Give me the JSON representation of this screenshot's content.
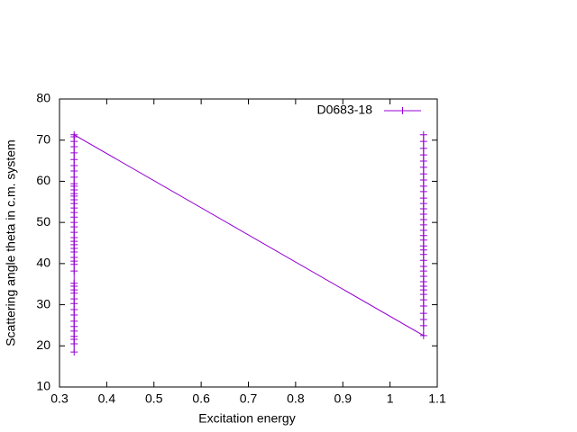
{
  "chart_data": {
    "type": "line",
    "xlabel": "Excitation energy",
    "ylabel": "Scattering angle theta in c.m. system",
    "xlim": [
      0.3,
      1.1
    ],
    "xticks": [
      0.3,
      0.4,
      0.5,
      0.6,
      0.7,
      0.8,
      0.9,
      1,
      1.1
    ],
    "ylim": [
      10,
      80
    ],
    "yticks": [
      10,
      20,
      30,
      40,
      50,
      60,
      70,
      80
    ],
    "legend": "upper right",
    "x": [
      0.331,
      0.331,
      0.331,
      0.331,
      0.331,
      0.331,
      0.331,
      0.331,
      0.331,
      0.331,
      0.331,
      0.331,
      0.331,
      0.331,
      0.331,
      0.331,
      0.331,
      0.331,
      0.331,
      0.331,
      0.331,
      0.331,
      0.331,
      0.331,
      0.331,
      0.331,
      0.331,
      0.331,
      0.331,
      0.331,
      0.331,
      0.331,
      0.331,
      0.331,
      0.331,
      0.331,
      0.331,
      0.331,
      0.331,
      0.331,
      0.331,
      0.331,
      0.331,
      0.331,
      0.331,
      0.331,
      1.071,
      1.071,
      1.071,
      1.071,
      1.071,
      1.071,
      1.071,
      1.071,
      1.071,
      1.071,
      1.071,
      1.071,
      1.071,
      1.071,
      1.071,
      1.071,
      1.071,
      1.071,
      1.071,
      1.071,
      1.071,
      1.071,
      1.071,
      1.071,
      1.071,
      1.071,
      1.071,
      1.071,
      1.071,
      1.071,
      1.071,
      1.071,
      1.071,
      1.071,
      1.071,
      1.071
    ],
    "series": [
      {
        "name": "D0683-18",
        "color": "#9400d3",
        "values": [
          18.5,
          20.5,
          21.6,
          22.3,
          23.6,
          24.7,
          26.0,
          27.5,
          28.8,
          30.3,
          31.4,
          32.8,
          33.6,
          34.5,
          35.2,
          38.2,
          39.8,
          40.6,
          41.5,
          42.8,
          43.7,
          44.6,
          45.4,
          46.3,
          47.6,
          48.9,
          50.0,
          51.3,
          52.4,
          53.5,
          54.6,
          55.5,
          56.4,
          57.0,
          57.9,
          58.8,
          59.4,
          61.0,
          62.5,
          63.8,
          65.3,
          66.9,
          68.4,
          69.7,
          70.8,
          71.3,
          22.5,
          24.9,
          26.4,
          27.9,
          29.7,
          31.2,
          32.5,
          33.6,
          34.5,
          35.6,
          36.9,
          38.2,
          39.3,
          40.8,
          42.2,
          43.3,
          44.3,
          45.7,
          46.8,
          48.1,
          49.4,
          50.7,
          52.0,
          53.3,
          54.6,
          55.9,
          57.5,
          58.8,
          60.3,
          61.8,
          63.4,
          64.9,
          66.4,
          68.0,
          69.7,
          71.3
        ]
      }
    ]
  }
}
